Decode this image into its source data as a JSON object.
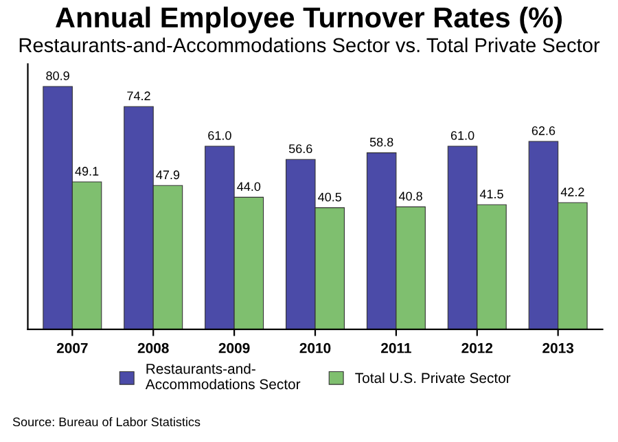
{
  "chart_data": {
    "type": "bar",
    "title": "Annual Employee Turnover Rates (%)",
    "subtitle": "Restaurants-and-Accommodations Sector vs. Total Private Sector",
    "categories": [
      "2007",
      "2008",
      "2009",
      "2010",
      "2011",
      "2012",
      "2013"
    ],
    "series": [
      {
        "name": "Restaurants-and-\nAccommodations Sector",
        "color": "#4b4ba8",
        "values": [
          80.9,
          74.2,
          61.0,
          56.6,
          58.8,
          61.0,
          62.6
        ],
        "value_labels": [
          "80.9",
          "74.2",
          "61.0",
          "56.6",
          "58.8",
          "61.0",
          "62.6"
        ]
      },
      {
        "name": "Total U.S. Private Sector",
        "color": "#7fbf6f",
        "values": [
          49.1,
          47.9,
          44.0,
          40.5,
          40.8,
          41.5,
          42.2
        ],
        "value_labels": [
          "49.1",
          "47.9",
          "44.0",
          "40.5",
          "40.8",
          "41.5",
          "42.2"
        ]
      }
    ],
    "tick_labels": "x",
    "grid": false,
    "legend": "bottom",
    "annotations": [
      "Source: Bureau of Labor Statistics"
    ]
  }
}
